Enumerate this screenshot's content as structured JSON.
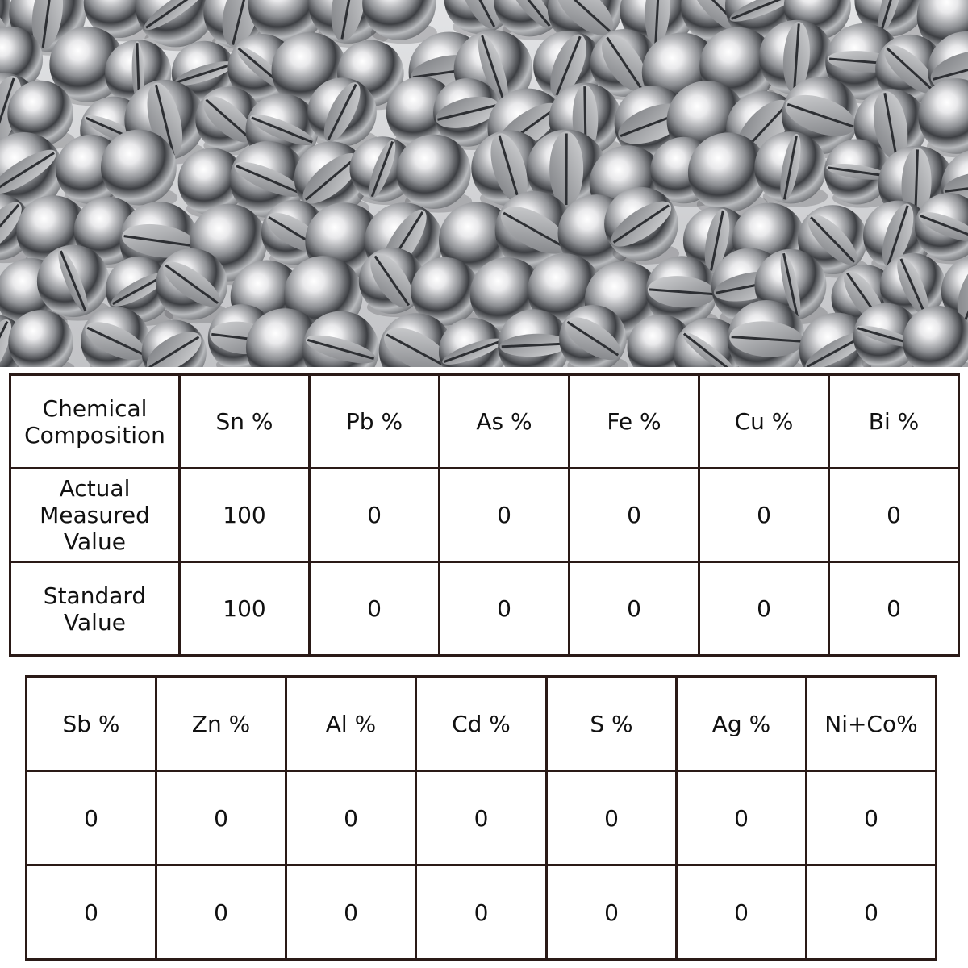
{
  "photo": {
    "subject": "pile of split tin shot balls",
    "background_color": "#cfd0d2",
    "metal_color": "#c9c9cb"
  },
  "table1": {
    "header": [
      "Chemical Composition",
      "Sn %",
      "Pb %",
      "As %",
      "Fe %",
      "Cu %",
      "Bi %"
    ],
    "rows": [
      [
        "Actual Measured Value",
        "100",
        "0",
        "0",
        "0",
        "0",
        "0"
      ],
      [
        "Standard Value",
        "100",
        "0",
        "0",
        "0",
        "0",
        "0"
      ]
    ]
  },
  "table2": {
    "header": [
      "Sb %",
      "Zn %",
      "Al %",
      "Cd %",
      "S %",
      "Ag %",
      "Ni+Co%"
    ],
    "rows": [
      [
        "0",
        "0",
        "0",
        "0",
        "0",
        "0",
        "0"
      ],
      [
        "0",
        "0",
        "0",
        "0",
        "0",
        "0",
        "0"
      ]
    ]
  },
  "colors": {
    "border": "#2a1a17",
    "text": "#111111"
  }
}
